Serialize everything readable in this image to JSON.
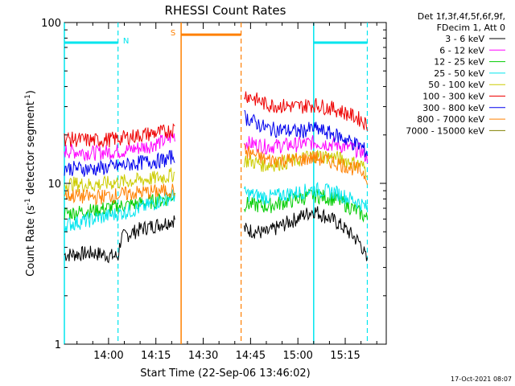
{
  "chart_data": {
    "type": "line",
    "title": "RHESSI Count Rates",
    "xlabel": "Start Time (22-Sep-06 13:46:02)",
    "ylabel_main": "Count Rate (s",
    "ylabel_sup": "-1",
    "ylabel_rest": " detector segment",
    "ylabel_sup2": "-1",
    "ylabel_close": ")",
    "x_scale": "time",
    "x_range_minutes": [
      "13:46",
      "15:28"
    ],
    "x_ticks": [
      "14:00",
      "14:15",
      "14:30",
      "14:45",
      "15:00",
      "15:15"
    ],
    "y_scale": "log",
    "ylim": [
      1,
      100
    ],
    "y_ticks": [
      "1",
      "10",
      "100"
    ],
    "legend_header": [
      "Det 1f,3f,4f,5f,6f,9f,",
      "FDecim 1, Att 0"
    ],
    "legend_placement": "right",
    "footer_date": "17-Oct-2021 08:07",
    "segments": [
      {
        "start": "13:46",
        "end": "14:03",
        "label": "N",
        "label_color": "#00e5ee",
        "line": "cyan",
        "y": 75
      },
      {
        "start": "14:23",
        "end": "14:42",
        "label": "S",
        "label_color": "#ff8000",
        "line": "orange",
        "y": 84
      },
      {
        "start": "15:05",
        "end": "15:22",
        "label": "",
        "label_color": "#00e5ee",
        "line": "cyan",
        "y": 75
      }
    ],
    "series": [
      {
        "name": "3 - 6 keV",
        "color": "#000000",
        "x": [
          "13:46",
          "13:55",
          "14:03",
          "14:04",
          "14:10",
          "14:18",
          "14:21",
          "14:43",
          "14:50",
          "15:00",
          "15:05",
          "15:12",
          "15:20",
          "15:22"
        ],
        "values": [
          3.6,
          3.7,
          3.5,
          4.6,
          5.2,
          5.7,
          6.0,
          5.2,
          4.9,
          6.1,
          6.8,
          5.8,
          4.2,
          3.2
        ]
      },
      {
        "name": "6 - 12 keV",
        "color": "#ff00ff",
        "x": [
          "13:46",
          "13:55",
          "14:05",
          "14:12",
          "14:18",
          "14:21",
          "14:43",
          "14:50",
          "15:00",
          "15:05",
          "15:12",
          "15:20",
          "15:22"
        ],
        "values": [
          16,
          15.5,
          16,
          17,
          18.5,
          20,
          18,
          17,
          17.5,
          18,
          17.5,
          16,
          14.5
        ]
      },
      {
        "name": "12 - 25 keV",
        "color": "#00cc00",
        "x": [
          "13:46",
          "13:55",
          "14:03",
          "14:10",
          "14:18",
          "14:21",
          "14:43",
          "14:50",
          "15:00",
          "15:05",
          "15:12",
          "15:20",
          "15:22"
        ],
        "values": [
          6.5,
          6.8,
          7.2,
          7.5,
          8,
          8.5,
          7.5,
          7.2,
          8,
          8.5,
          8,
          6.5,
          6
        ]
      },
      {
        "name": "25 - 50 keV",
        "color": "#00e5ee",
        "x": [
          "13:46",
          "13:55",
          "14:03",
          "14:10",
          "14:18",
          "14:21",
          "14:43",
          "14:50",
          "15:00",
          "15:05",
          "15:12",
          "15:20",
          "15:22"
        ],
        "values": [
          5.5,
          6,
          6.5,
          7,
          8,
          8.5,
          8.7,
          8.2,
          8.8,
          9.2,
          8.8,
          7.5,
          7
        ]
      },
      {
        "name": "50 - 100 keV",
        "color": "#cccc00",
        "x": [
          "13:46",
          "13:55",
          "14:03",
          "14:10",
          "14:18",
          "14:21",
          "14:43",
          "14:50",
          "15:00",
          "15:05",
          "15:12",
          "15:20",
          "15:22"
        ],
        "values": [
          10,
          9.8,
          10.2,
          10.5,
          11,
          11.5,
          14,
          13,
          14,
          15,
          14.5,
          13,
          12
        ]
      },
      {
        "name": "100 - 300 keV",
        "color": "#ee0000",
        "x": [
          "13:46",
          "13:55",
          "14:03",
          "14:10",
          "14:18",
          "14:21",
          "14:43",
          "14:50",
          "15:00",
          "15:05",
          "15:12",
          "15:20",
          "15:22"
        ],
        "values": [
          19,
          18.5,
          19,
          20,
          21,
          22,
          36,
          31,
          30,
          31,
          29,
          25,
          23
        ]
      },
      {
        "name": "300 - 800 keV",
        "color": "#0000ee",
        "x": [
          "13:46",
          "13:55",
          "14:03",
          "14:10",
          "14:18",
          "14:21",
          "14:43",
          "14:50",
          "15:00",
          "15:05",
          "15:12",
          "15:20",
          "15:22"
        ],
        "values": [
          12.5,
          12.3,
          12.8,
          13.5,
          14,
          15,
          26,
          22,
          21,
          22,
          20,
          17,
          15.5
        ]
      },
      {
        "name": "800 - 7000 keV",
        "color": "#ff8000",
        "x": [
          "13:46",
          "13:55",
          "14:03",
          "14:10",
          "14:18",
          "14:21",
          "14:43",
          "14:50",
          "15:00",
          "15:05",
          "15:12",
          "15:20",
          "15:22"
        ],
        "values": [
          8.5,
          8.2,
          8.5,
          8.8,
          9,
          9.2,
          16,
          14,
          14,
          14.5,
          13.5,
          12,
          11
        ]
      },
      {
        "name": "7000 - 15000 keV",
        "color": "#808000",
        "x": [],
        "values": []
      }
    ]
  }
}
